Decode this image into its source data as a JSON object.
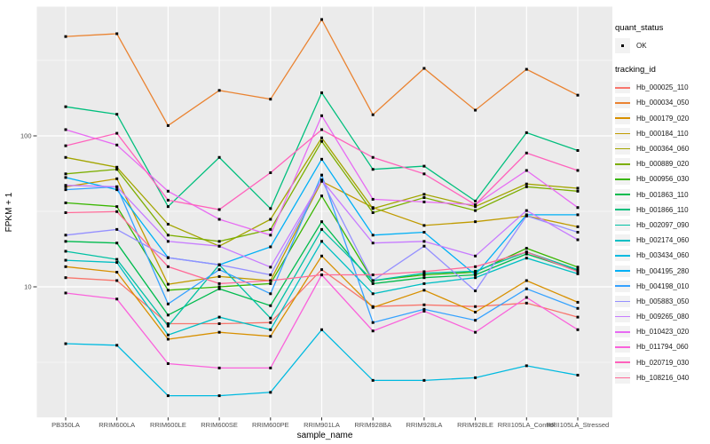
{
  "chart_data": {
    "type": "line",
    "title": "",
    "xlabel": "sample_name",
    "ylabel": "FPKM + 1",
    "y_scale": "log10",
    "y_ticks": [
      10,
      100
    ],
    "y_tick_labels": [
      "10",
      "100"
    ],
    "y_minor_gridlines": [
      3.162,
      31.62,
      316.2
    ],
    "ylim": [
      1.35,
      700
    ],
    "grid": "on",
    "legend_position": "right",
    "categories": [
      "PB350LA",
      "RRIM600LA",
      "RRIM600LE",
      "RRIM600SE",
      "RRIM600PE",
      "RRIM901LA",
      "RRIM928BA",
      "RRIM928LA",
      "RRIM928LE",
      "RRII105LA_Control",
      "RRII105LA_Stressed"
    ],
    "series": [
      {
        "name": "Hb_000025_110",
        "color": "#F8766D",
        "values": [
          11.5,
          11.0,
          5.7,
          5.7,
          5.8,
          13.0,
          7.4,
          7.6,
          7.4,
          7.8,
          6.3
        ]
      },
      {
        "name": "Hb_000034_050",
        "color": "#EA8331",
        "values": [
          455,
          475,
          117,
          200,
          175,
          590,
          138,
          280,
          148,
          276,
          186
        ]
      },
      {
        "name": "Hb_000179_020",
        "color": "#D89000",
        "values": [
          13.6,
          12.5,
          4.5,
          5.0,
          4.7,
          16.0,
          7.3,
          9.5,
          6.8,
          11.0,
          7.9
        ]
      },
      {
        "name": "Hb_000184_110",
        "color": "#C09B00",
        "values": [
          46,
          52,
          10.4,
          11.7,
          11.0,
          50,
          33.5,
          25.5,
          27,
          29.5,
          25
        ]
      },
      {
        "name": "Hb_000364_060",
        "color": "#A3A500",
        "values": [
          72,
          62,
          26,
          18.6,
          28,
          97,
          33,
          41,
          34,
          48,
          45
        ]
      },
      {
        "name": "Hb_000889_020",
        "color": "#7CAE00",
        "values": [
          56,
          60,
          22,
          20,
          24,
          92,
          31,
          39,
          32,
          46,
          43
        ]
      },
      {
        "name": "Hb_000956_030",
        "color": "#39B600",
        "values": [
          36,
          34,
          9.5,
          10.0,
          10.5,
          40,
          11.0,
          12.0,
          12.5,
          18,
          13.5
        ]
      },
      {
        "name": "Hb_001863_110",
        "color": "#00BB4E",
        "values": [
          20,
          19.5,
          6.5,
          9.7,
          7.5,
          27,
          10.5,
          11.5,
          12.0,
          16.5,
          12.8
        ]
      },
      {
        "name": "Hb_001866_110",
        "color": "#00BF7D",
        "values": [
          156,
          139,
          34,
          72,
          33,
          193,
          60,
          63,
          37,
          105,
          80
        ]
      },
      {
        "name": "Hb_002097_090",
        "color": "#00C1A3",
        "values": [
          17.2,
          15.2,
          5.5,
          14.0,
          6.2,
          24,
          11.0,
          12.3,
          12.7,
          17.0,
          13.0
        ]
      },
      {
        "name": "Hb_002174_060",
        "color": "#00BFC4",
        "values": [
          15.0,
          14.5,
          4.8,
          6.3,
          5.2,
          20,
          9.0,
          10.5,
          11.5,
          15.5,
          12.2
        ]
      },
      {
        "name": "Hb_003434_060",
        "color": "#00BAE0",
        "values": [
          4.2,
          4.1,
          1.9,
          1.9,
          2.0,
          5.2,
          2.4,
          2.4,
          2.5,
          3.0,
          2.6
        ]
      },
      {
        "name": "Hb_004195_280",
        "color": "#00B0F6",
        "values": [
          53,
          44,
          15.6,
          14.0,
          18.4,
          70,
          22,
          23,
          12.0,
          30,
          30
        ]
      },
      {
        "name": "Hb_004198_010",
        "color": "#35A2FF",
        "values": [
          44,
          46,
          7.7,
          13.0,
          9.0,
          55,
          5.8,
          7.1,
          6.0,
          9.7,
          7.2
        ]
      },
      {
        "name": "Hb_005883_050",
        "color": "#9590FF",
        "values": [
          22,
          24,
          15.6,
          14.0,
          12.0,
          51,
          11.0,
          18.6,
          9.4,
          29.5,
          23
        ]
      },
      {
        "name": "Hb_009265_080",
        "color": "#C77CFF",
        "values": [
          47,
          46,
          20,
          18.6,
          13.5,
          51,
          19.5,
          20,
          16.0,
          32,
          20.5
        ]
      },
      {
        "name": "Hb_010423_020",
        "color": "#E76BF3",
        "values": [
          110,
          87,
          43,
          28,
          22,
          136,
          38,
          36.5,
          35,
          59,
          33.5
        ]
      },
      {
        "name": "Hb_011794_060",
        "color": "#FA62DB",
        "values": [
          9.1,
          8.3,
          3.1,
          2.9,
          2.9,
          12.0,
          5.1,
          6.9,
          5.0,
          8.5,
          5.2
        ]
      },
      {
        "name": "Hb_020719_030",
        "color": "#FF62BC",
        "values": [
          86,
          104,
          37.5,
          32.5,
          57,
          110,
          72,
          56,
          35,
          77,
          59
        ]
      },
      {
        "name": "Hb_108216_040",
        "color": "#FF6A98",
        "values": [
          31,
          31.5,
          13.6,
          10.5,
          11.0,
          12.0,
          12.0,
          12.6,
          13.6,
          17.0,
          12.6
        ]
      }
    ],
    "point_shape": "filled-square",
    "point_color": "#000000"
  },
  "legend": {
    "quant_status_title": "quant_status",
    "quant_status_items": [
      {
        "label": "OK"
      }
    ],
    "tracking_id_title": "tracking_id"
  },
  "colors": {
    "panel_background": "#EBEBEB",
    "gridline": "#FFFFFF",
    "axis_text": "#4D4D4D",
    "axis_title": "#000000",
    "tick_mark": "#333333",
    "legend_key_background": "#F2F2F2",
    "point": "#000000"
  }
}
